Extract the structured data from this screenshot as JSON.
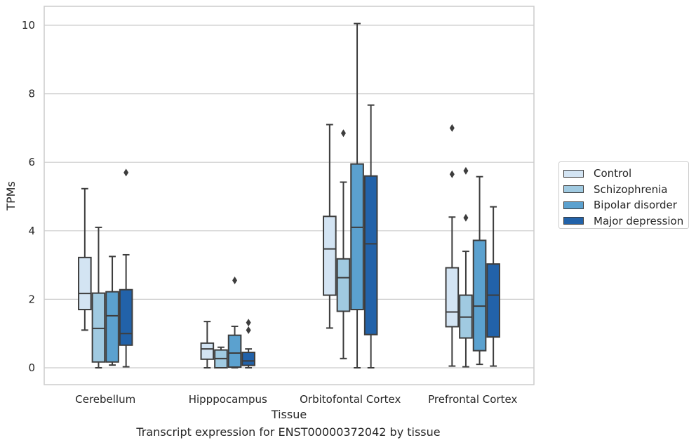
{
  "chart_data": {
    "type": "box",
    "title": "",
    "xlabel": "Tissue",
    "ylabel": "TPMs",
    "caption": "Transcript expression for ENST00000372042 by tissue",
    "ylim": [
      -0.5,
      10.55
    ],
    "yticks": [
      "0",
      "2",
      "4",
      "6",
      "8",
      "10"
    ],
    "grid": "horizontal",
    "legend_position": "right",
    "categories": [
      "Cerebellum",
      "Hipppocampus",
      "Orbitofontal Cortex",
      "Prefrontal Cortex"
    ],
    "series": [
      {
        "name": "Control",
        "color": "#d3e4f3",
        "boxes": [
          {
            "whislo": 1.1,
            "q1": 1.7,
            "med": 2.17,
            "q3": 3.22,
            "whishi": 5.23,
            "fliers": []
          },
          {
            "whislo": 0.0,
            "q1": 0.25,
            "med": 0.55,
            "q3": 0.72,
            "whishi": 1.35,
            "fliers": []
          },
          {
            "whislo": 1.16,
            "q1": 2.12,
            "med": 3.47,
            "q3": 4.42,
            "whishi": 7.1,
            "fliers": []
          },
          {
            "whislo": 0.05,
            "q1": 1.2,
            "med": 1.63,
            "q3": 2.92,
            "whishi": 4.4,
            "fliers": [
              5.65,
              7.0
            ]
          }
        ]
      },
      {
        "name": "Schizophrenia",
        "color": "#a0cae1",
        "boxes": [
          {
            "whislo": 0.0,
            "q1": 0.17,
            "med": 1.15,
            "q3": 2.18,
            "whishi": 4.1,
            "fliers": []
          },
          {
            "whislo": 0.0,
            "q1": 0.0,
            "med": 0.27,
            "q3": 0.52,
            "whishi": 0.6,
            "fliers": []
          },
          {
            "whislo": 0.27,
            "q1": 1.65,
            "med": 2.63,
            "q3": 3.18,
            "whishi": 5.42,
            "fliers": [
              6.85
            ]
          },
          {
            "whislo": 0.03,
            "q1": 0.87,
            "med": 1.48,
            "q3": 2.12,
            "whishi": 3.4,
            "fliers": [
              4.38,
              5.75
            ]
          }
        ]
      },
      {
        "name": "Bipolar disorder",
        "color": "#5ba1cf",
        "boxes": [
          {
            "whislo": 0.08,
            "q1": 0.17,
            "med": 1.52,
            "q3": 2.22,
            "whishi": 3.25,
            "fliers": []
          },
          {
            "whislo": 0.0,
            "q1": 0.02,
            "med": 0.43,
            "q3": 0.95,
            "whishi": 1.21,
            "fliers": [
              2.55
            ]
          },
          {
            "whislo": 0.0,
            "q1": 1.7,
            "med": 4.1,
            "q3": 5.95,
            "whishi": 10.05,
            "fliers": []
          },
          {
            "whislo": 0.1,
            "q1": 0.5,
            "med": 1.8,
            "q3": 3.72,
            "whishi": 5.58,
            "fliers": []
          }
        ]
      },
      {
        "name": "Major depression",
        "color": "#2262a9",
        "boxes": [
          {
            "whislo": 0.03,
            "q1": 0.66,
            "med": 1.0,
            "q3": 2.28,
            "whishi": 3.3,
            "fliers": [
              5.7
            ]
          },
          {
            "whislo": 0.0,
            "q1": 0.07,
            "med": 0.2,
            "q3": 0.45,
            "whishi": 0.55,
            "fliers": [
              1.1,
              1.32
            ]
          },
          {
            "whislo": 0.0,
            "q1": 0.97,
            "med": 3.62,
            "q3": 5.6,
            "whishi": 7.67,
            "fliers": []
          },
          {
            "whislo": 0.05,
            "q1": 0.9,
            "med": 2.12,
            "q3": 3.03,
            "whishi": 4.7,
            "fliers": []
          }
        ]
      }
    ]
  }
}
